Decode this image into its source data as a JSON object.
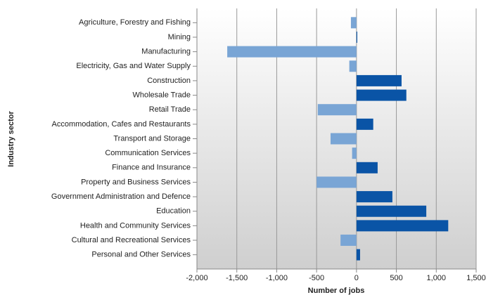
{
  "chart_data": {
    "type": "bar",
    "orientation": "horizontal",
    "x_label": "Number of jobs",
    "y_label": "Industry sector",
    "categories": [
      "Agriculture, Forestry and Fishing",
      "Mining",
      "Manufacturing",
      "Electricity, Gas and Water Supply",
      "Construction",
      "Wholesale Trade",
      "Retail Trade",
      "Accommodation, Cafes and Restaurants",
      "Transport and Storage",
      "Communication Services",
      "Finance and Insurance",
      "Property and Business Services",
      "Government Administration and Defence",
      "Education",
      "Health and Community Services",
      "Cultural and Recreational Services",
      "Personal and Other Services"
    ],
    "values": [
      -70,
      10,
      -1620,
      -90,
      565,
      625,
      -485,
      210,
      -325,
      -55,
      265,
      -500,
      450,
      875,
      1150,
      -200,
      45
    ],
    "positive_color": "#0a54a6",
    "negative_color": "#79a5d5",
    "xlim": [
      -2000,
      1500
    ],
    "xticks": [
      {
        "value": -2000,
        "label": "-2,000"
      },
      {
        "value": -1500,
        "label": "-1,500"
      },
      {
        "value": -1000,
        "label": "-1,000"
      },
      -500,
      0,
      500,
      {
        "value": 1000,
        "label": "1,000"
      },
      {
        "value": 1500,
        "label": "1,500"
      }
    ],
    "grid": true
  }
}
